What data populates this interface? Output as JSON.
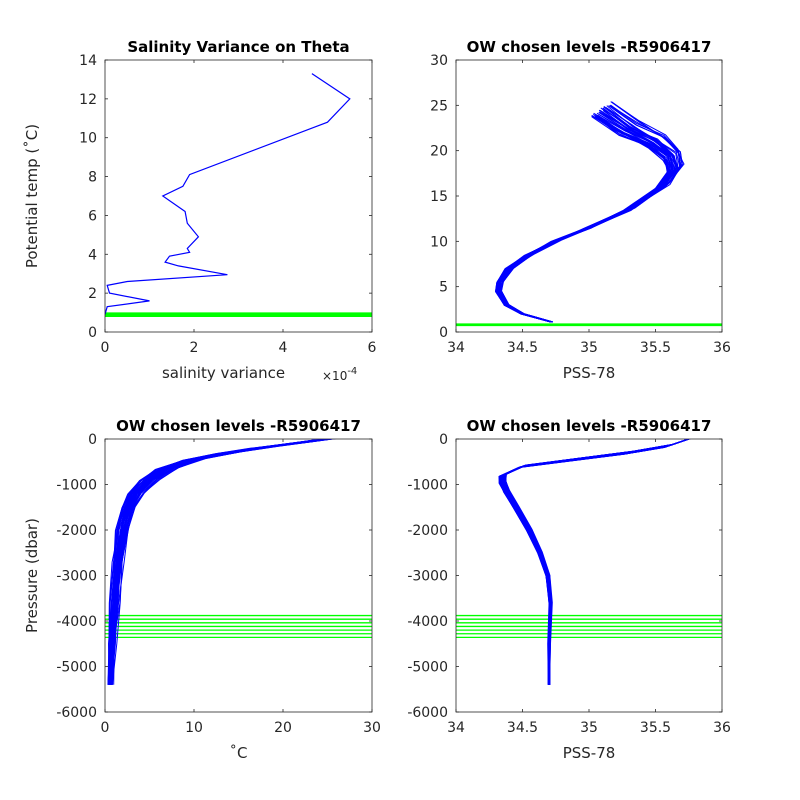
{
  "figure": {
    "width": 800,
    "height": 800
  },
  "colors": {
    "profile": "#0000ff",
    "level": "#00ff00",
    "axis": "#262626"
  },
  "chart_data": [
    {
      "id": "p1",
      "type": "line",
      "title": "Salinity Variance on Theta",
      "xlabel": "salinity variance",
      "xexp": "×10",
      "xexp_power": "-4",
      "ylabel": "Potential temp (˚C)",
      "xlim": [
        0,
        6
      ],
      "ylim": [
        0,
        14
      ],
      "xticks": [
        0,
        2,
        4,
        6
      ],
      "xtick_labels": [
        "0",
        "2",
        "4",
        "6"
      ],
      "yticks": [
        0,
        2,
        4,
        6,
        8,
        10,
        12,
        14
      ],
      "ytick_labels": [
        "0",
        "2",
        "4",
        "6",
        "8",
        "10",
        "12",
        "14"
      ],
      "series": [
        {
          "x": [
            4.65,
            5.5,
            5.0,
            1.9,
            1.75,
            1.3,
            1.8,
            1.85,
            2.1,
            1.85,
            1.9,
            1.45,
            1.35,
            1.65,
            2.75,
            0.5,
            0.05,
            0.1,
            1.0,
            0.05,
            0.0
          ],
          "y": [
            13.3,
            12.0,
            10.8,
            8.1,
            7.5,
            7.0,
            6.2,
            5.6,
            4.9,
            4.3,
            4.1,
            3.9,
            3.6,
            3.4,
            2.95,
            2.6,
            2.4,
            2.0,
            1.6,
            1.3,
            0.9
          ]
        }
      ],
      "levels": {
        "axis": "y",
        "values": [
          0.8,
          0.82,
          0.84,
          0.86,
          0.88,
          0.9,
          0.92,
          0.94,
          0.96,
          0.98
        ]
      }
    },
    {
      "id": "p2",
      "type": "line",
      "title": "OW chosen levels -R5906417",
      "xlabel": "PSS-78",
      "ylabel": "",
      "xlim": [
        34,
        36
      ],
      "ylim": [
        0,
        30
      ],
      "xticks": [
        34,
        34.5,
        35,
        35.5,
        36
      ],
      "xtick_labels": [
        "34",
        "34.5",
        "35",
        "35.5",
        "36"
      ],
      "yticks": [
        0,
        5,
        10,
        15,
        20,
        25,
        30
      ],
      "ytick_labels": [
        "0",
        "5",
        "10",
        "15",
        "20",
        "25",
        "30"
      ],
      "series_envelope": {
        "description_free_profile": true,
        "x": [
          34.72,
          34.5,
          34.38,
          34.32,
          34.33,
          34.4,
          34.55,
          34.75,
          35.0,
          35.3,
          35.55,
          35.65,
          35.62,
          35.5,
          35.3,
          35.1
        ],
        "y": [
          1.1,
          2.0,
          3.0,
          4.5,
          5.5,
          7.0,
          8.5,
          10.0,
          11.5,
          13.5,
          16.0,
          18.0,
          19.5,
          21.0,
          22.5,
          24.5
        ]
      },
      "levels": {
        "axis": "y",
        "values": [
          0.72,
          0.76,
          0.8,
          0.84,
          0.88
        ]
      }
    },
    {
      "id": "p3",
      "type": "line",
      "title": "OW chosen levels -R5906417",
      "xlabel": "˚C",
      "ylabel": "Pressure (dbar)",
      "xlim": [
        0,
        30
      ],
      "ylim": [
        -6000,
        0
      ],
      "xticks": [
        0,
        10,
        20,
        30
      ],
      "xtick_labels": [
        "0",
        "10",
        "20",
        "30"
      ],
      "yticks": [
        -6000,
        -5000,
        -4000,
        -3000,
        -2000,
        -1000,
        0
      ],
      "ytick_labels": [
        "-6000",
        "-5000",
        "-4000",
        "-3000",
        "-2000",
        "-1000",
        "0"
      ],
      "series_envelope": {
        "x": [
          0.6,
          0.8,
          1.1,
          1.5,
          2.0,
          2.7,
          3.5,
          5.0,
          7.0,
          10.0,
          14.0,
          18.0,
          22.0,
          25.0
        ],
        "y": [
          -5400,
          -4500,
          -3600,
          -2700,
          -2000,
          -1500,
          -1200,
          -900,
          -650,
          -450,
          -300,
          -180,
          -80,
          0
        ]
      },
      "levels": {
        "axis": "y",
        "values": [
          -3880,
          -3960,
          -4040,
          -4120,
          -4200,
          -4280,
          -4360
        ]
      }
    },
    {
      "id": "p4",
      "type": "line",
      "title": "OW chosen levels -R5906417",
      "xlabel": "PSS-78",
      "ylabel": "",
      "xlim": [
        34,
        36
      ],
      "ylim": [
        -6000,
        0
      ],
      "xticks": [
        34,
        34.5,
        35,
        35.5,
        36
      ],
      "xtick_labels": [
        "34",
        "34.5",
        "35",
        "35.5",
        "36"
      ],
      "yticks": [
        -6000,
        -5000,
        -4000,
        -3000,
        -2000,
        -1000,
        0
      ],
      "ytick_labels": [
        "-6000",
        "-5000",
        "-4000",
        "-3000",
        "-2000",
        "-1000",
        "0"
      ],
      "series_envelope": {
        "x": [
          34.7,
          34.7,
          34.71,
          34.69,
          34.63,
          34.55,
          34.45,
          34.38,
          34.35,
          34.35,
          34.5,
          34.9,
          35.3,
          35.6,
          35.75
        ],
        "y": [
          -5400,
          -4500,
          -3600,
          -3000,
          -2500,
          -2000,
          -1500,
          -1150,
          -950,
          -800,
          -600,
          -450,
          -300,
          -150,
          0
        ]
      },
      "levels": {
        "axis": "y",
        "values": [
          -3880,
          -3960,
          -4040,
          -4120,
          -4200,
          -4280,
          -4360
        ]
      }
    }
  ]
}
